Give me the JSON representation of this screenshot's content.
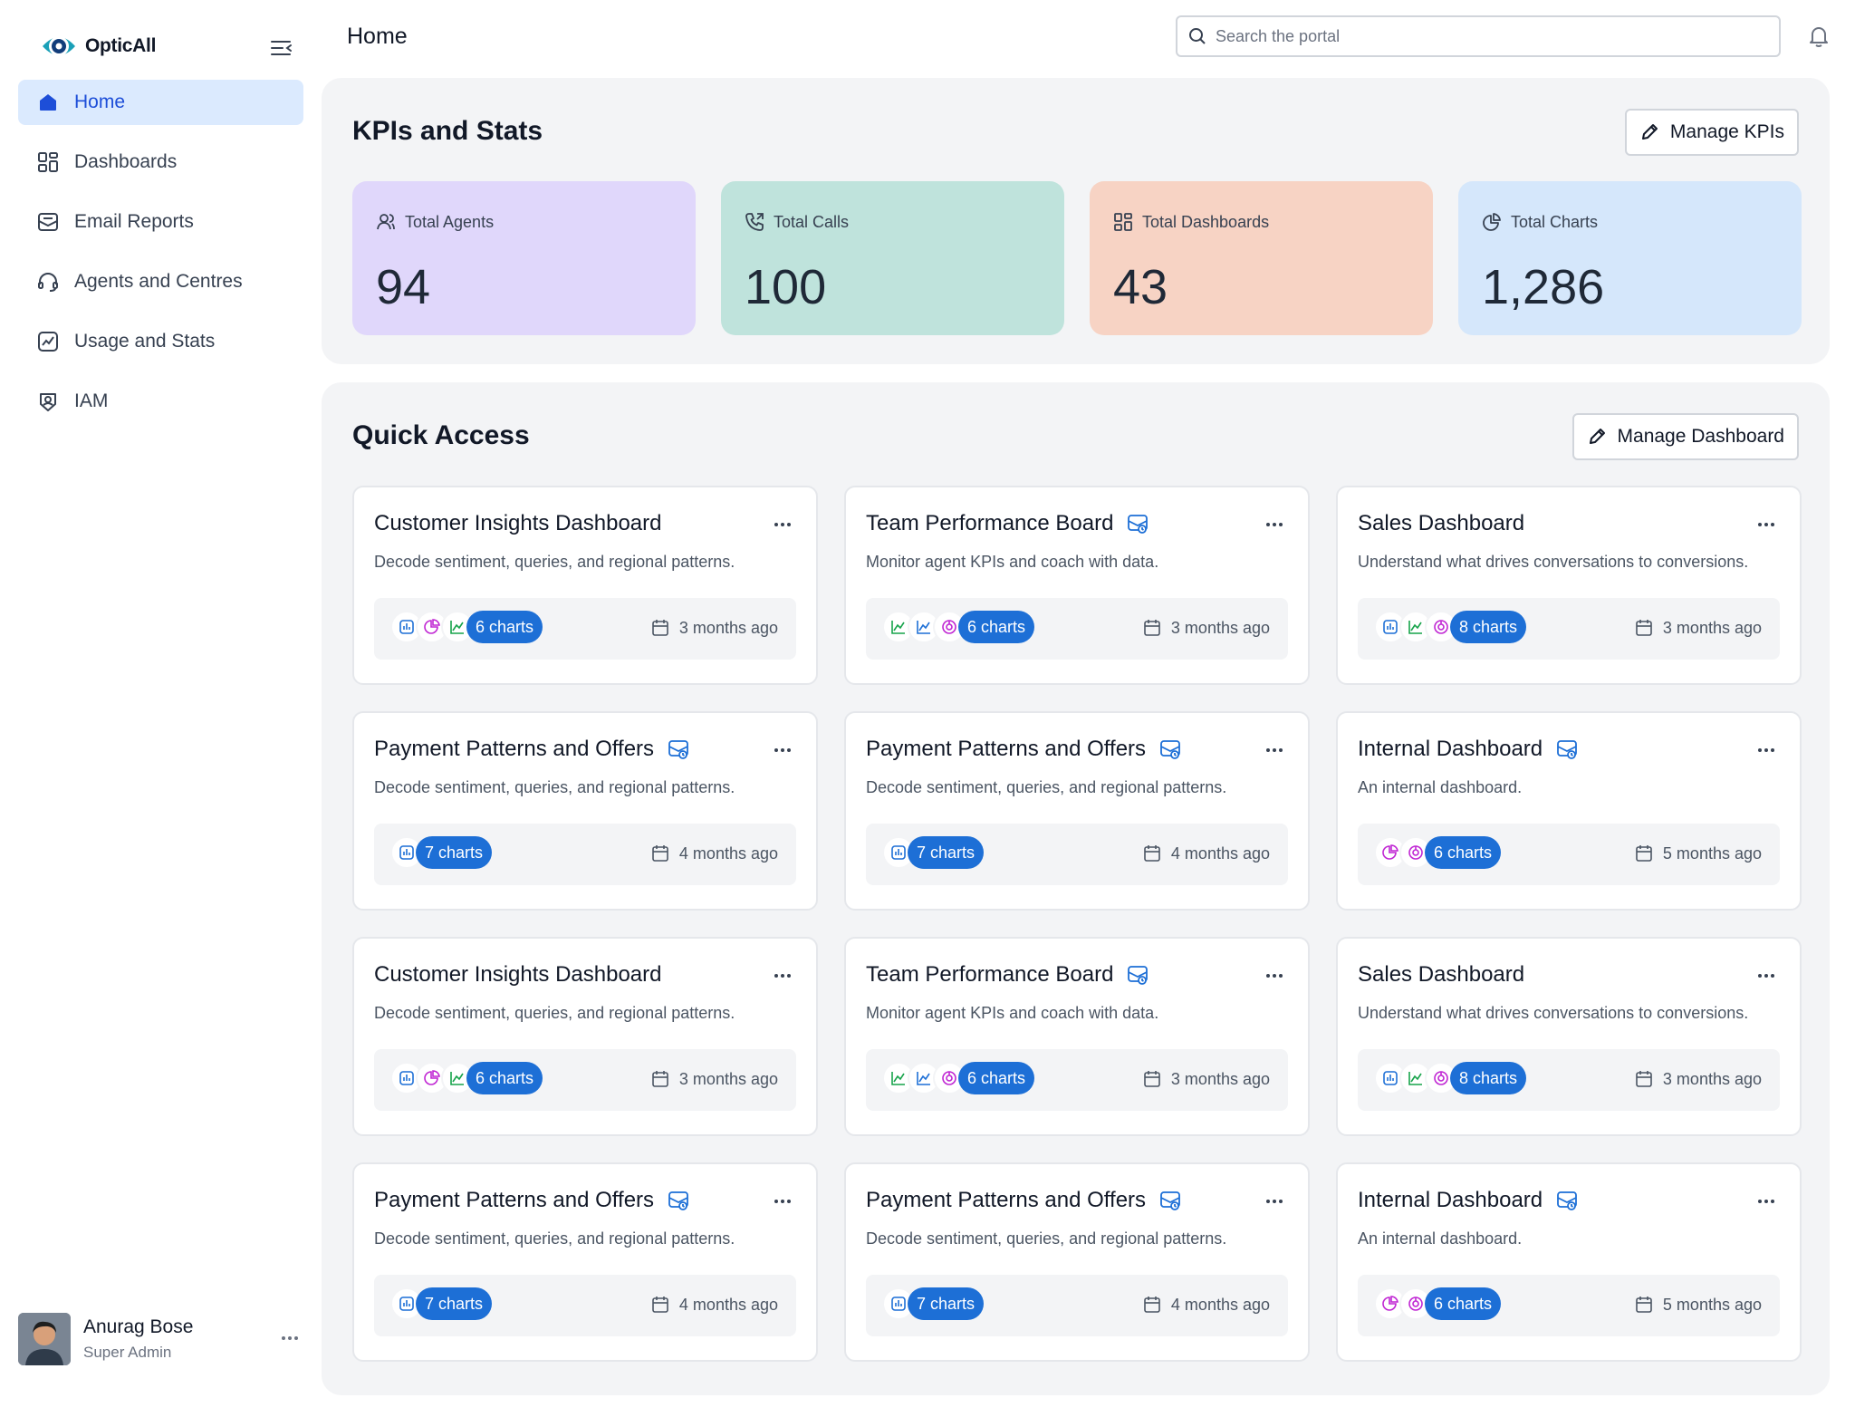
{
  "app": {
    "name": "OpticAll"
  },
  "colors": {
    "primary": "#1d6fd6",
    "active_nav_bg": "#dbeafe",
    "kpi_agents": "#e0d7fb",
    "kpi_calls": "#bfe3dc",
    "kpi_dashboards": "#f7d3c4",
    "kpi_charts": "#d5e7fb",
    "panel_bg": "#f3f4f6"
  },
  "sidebar": {
    "items": [
      {
        "label": "Home",
        "icon": "home-icon",
        "active": true
      },
      {
        "label": "Dashboards",
        "icon": "grid-icon",
        "active": false
      },
      {
        "label": "Email Reports",
        "icon": "email-report-icon",
        "active": false
      },
      {
        "label": "Agents and Centres",
        "icon": "headset-icon",
        "active": false
      },
      {
        "label": "Usage and Stats",
        "icon": "stats-icon",
        "active": false
      },
      {
        "label": "IAM",
        "icon": "user-badge-icon",
        "active": false
      }
    ],
    "user": {
      "name": "Anurag Bose",
      "role": "Super Admin"
    }
  },
  "header": {
    "title": "Home",
    "search_placeholder": "Search the portal"
  },
  "kpis": {
    "title": "KPIs and Stats",
    "manage_label": "Manage KPIs",
    "items": [
      {
        "label": "Total Agents",
        "value": "94",
        "icon": "users-icon"
      },
      {
        "label": "Total Calls",
        "value": "100",
        "icon": "phone-icon"
      },
      {
        "label": "Total Dashboards",
        "value": "43",
        "icon": "grid-icon"
      },
      {
        "label": "Total Charts",
        "value": "1,286",
        "icon": "pie-chart-icon"
      }
    ]
  },
  "quick_access": {
    "title": "Quick Access",
    "manage_label": "Manage Dashboard",
    "cards": [
      {
        "title": "Customer Insights Dashboard",
        "desc": "Decode sentiment, queries, and regional patterns.",
        "charts": "6 charts",
        "date": "3 months ago",
        "mail": false,
        "icons": [
          "bar",
          "pie",
          "line"
        ]
      },
      {
        "title": "Team Performance Board",
        "desc": "Monitor agent KPIs and coach with data.",
        "charts": "6 charts",
        "date": "3 months ago",
        "mail": true,
        "icons": [
          "line",
          "line-blue",
          "donut"
        ]
      },
      {
        "title": "Sales Dashboard",
        "desc": "Understand what drives conversations to conversions.",
        "charts": "8 charts",
        "date": "3 months ago",
        "mail": false,
        "icons": [
          "bar",
          "line",
          "donut"
        ]
      },
      {
        "title": "Payment Patterns and Offers",
        "desc": "Decode sentiment, queries, and regional patterns.",
        "charts": "7 charts",
        "date": "4 months ago",
        "mail": true,
        "icons": [
          "bar"
        ]
      },
      {
        "title": "Payment Patterns and Offers",
        "desc": "Decode sentiment, queries, and regional patterns.",
        "charts": "7 charts",
        "date": "4 months ago",
        "mail": true,
        "icons": [
          "bar"
        ]
      },
      {
        "title": "Internal Dashboard",
        "desc": "An internal dashboard.",
        "charts": "6 charts",
        "date": "5 months ago",
        "mail": true,
        "icons": [
          "pie",
          "donut"
        ]
      },
      {
        "title": "Customer Insights Dashboard",
        "desc": "Decode sentiment, queries, and regional patterns.",
        "charts": "6 charts",
        "date": "3 months ago",
        "mail": false,
        "icons": [
          "bar",
          "pie",
          "line"
        ]
      },
      {
        "title": "Team Performance Board",
        "desc": "Monitor agent KPIs and coach with data.",
        "charts": "6 charts",
        "date": "3 months ago",
        "mail": true,
        "icons": [
          "line",
          "line-blue",
          "donut"
        ]
      },
      {
        "title": "Sales Dashboard",
        "desc": "Understand what drives conversations to conversions.",
        "charts": "8 charts",
        "date": "3 months ago",
        "mail": false,
        "icons": [
          "bar",
          "line",
          "donut"
        ]
      },
      {
        "title": "Payment Patterns and Offers",
        "desc": "Decode sentiment, queries, and regional patterns.",
        "charts": "7 charts",
        "date": "4 months ago",
        "mail": true,
        "icons": [
          "bar"
        ]
      },
      {
        "title": "Payment Patterns and Offers",
        "desc": "Decode sentiment, queries, and regional patterns.",
        "charts": "7 charts",
        "date": "4 months ago",
        "mail": true,
        "icons": [
          "bar"
        ]
      },
      {
        "title": "Internal Dashboard",
        "desc": "An internal dashboard.",
        "charts": "6 charts",
        "date": "5 months ago",
        "mail": true,
        "icons": [
          "pie",
          "donut"
        ]
      }
    ]
  }
}
